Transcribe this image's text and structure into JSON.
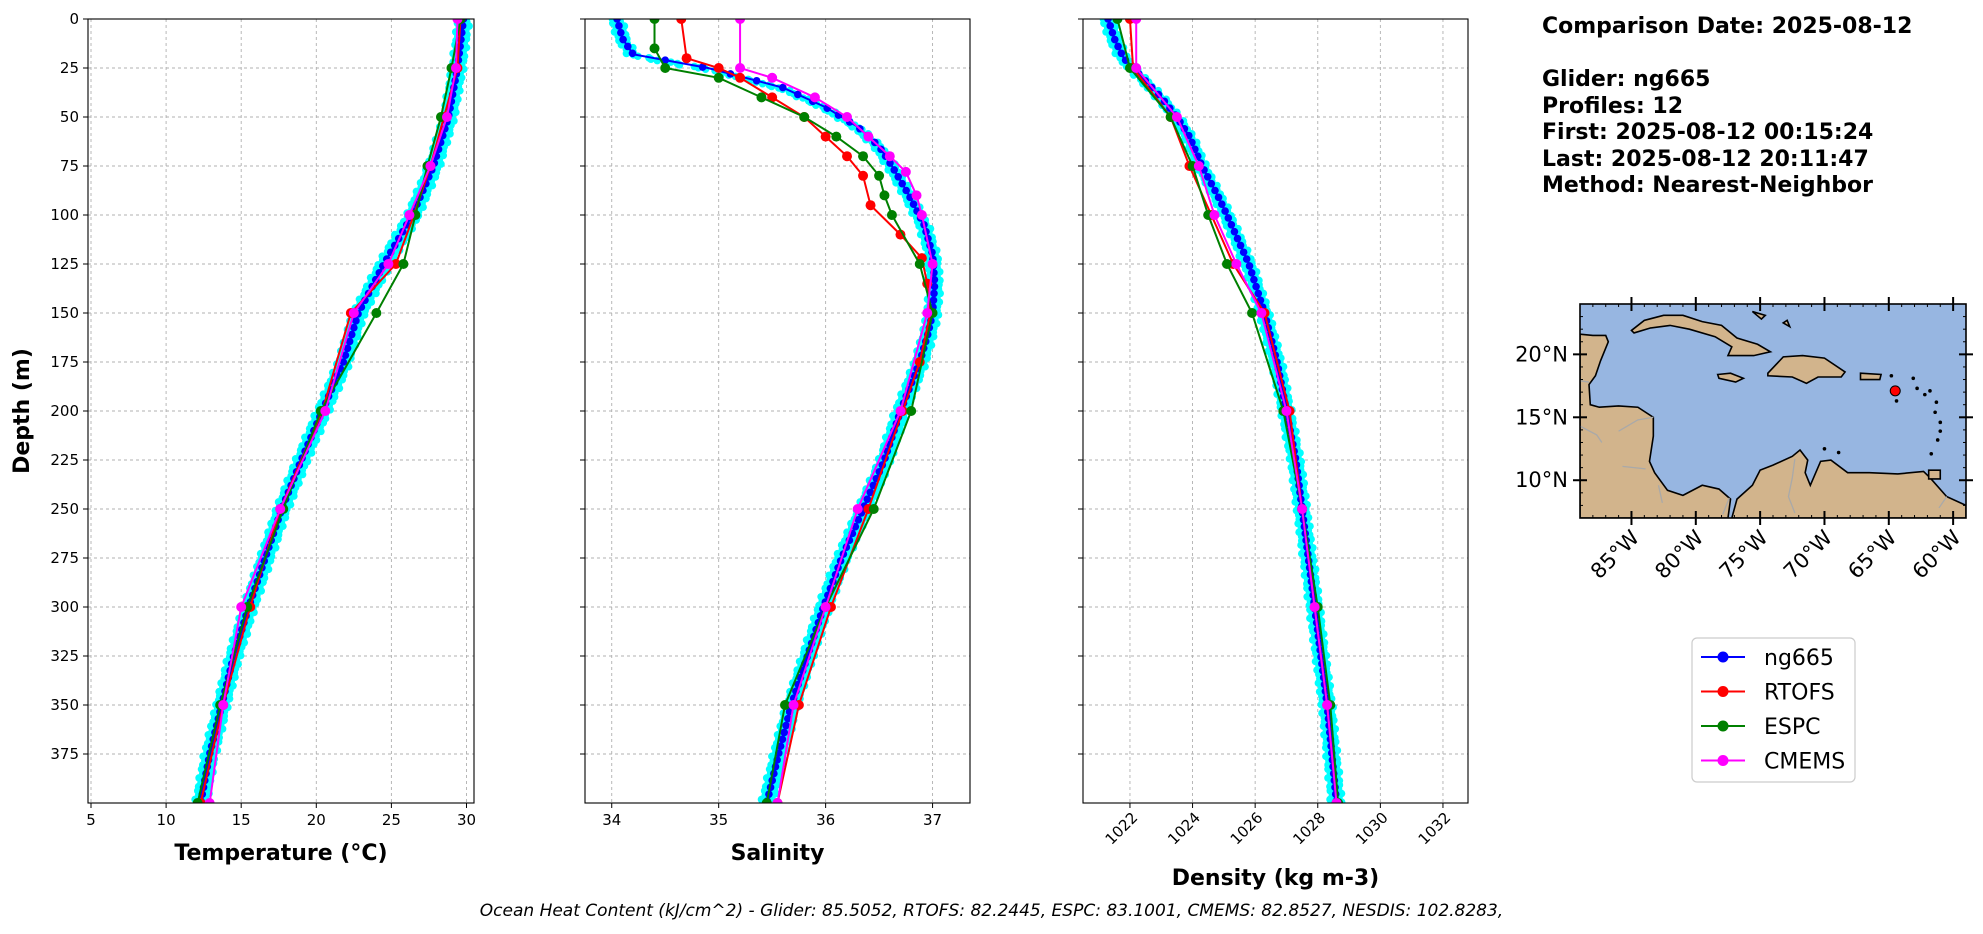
{
  "info": {
    "comparison_date": "Comparison Date: 2025-08-12",
    "glider": "Glider: ng665",
    "profiles": "Profiles: 12",
    "first": "First: 2025-08-12 00:15:24",
    "last": "Last: 2025-08-12 20:11:47",
    "method": "Method: Nearest-Neighbor"
  },
  "footer": "Ocean Heat Content (kJ/cm^2) - Glider: 85.5052,  RTOFS: 82.2445,  ESPC: 83.1001,  CMEMS: 82.8527,  NESDIS: 102.8283,",
  "colors": {
    "glider": "#0000ff",
    "glider_scatter": "#00ffff",
    "rtofs": "#ff0000",
    "espc": "#008000",
    "cmems": "#ff00ff",
    "ocean": "#97b6e1",
    "land": "#d2b48c"
  },
  "legend": {
    "placement": "below-map",
    "entries": [
      {
        "label": "ng665",
        "color": "#0000ff"
      },
      {
        "label": "RTOFS",
        "color": "#ff0000"
      },
      {
        "label": "ESPC",
        "color": "#008000"
      },
      {
        "label": "CMEMS",
        "color": "#ff00ff"
      }
    ]
  },
  "map": {
    "lon_range": [
      -89,
      -59
    ],
    "lat_range": [
      7,
      24
    ],
    "lat_ticks": [
      {
        "v": 20,
        "label": "20°N"
      },
      {
        "v": 15,
        "label": "15°N"
      },
      {
        "v": 10,
        "label": "10°N"
      }
    ],
    "lon_ticks": [
      {
        "v": -85,
        "label": "85°W"
      },
      {
        "v": -80,
        "label": "80°W"
      },
      {
        "v": -75,
        "label": "75°W"
      },
      {
        "v": -70,
        "label": "70°W"
      },
      {
        "v": -65,
        "label": "65°W"
      },
      {
        "v": -60,
        "label": "60°W"
      }
    ],
    "glider_position": {
      "lon": -64.5,
      "lat": 17.1
    }
  },
  "chart_data": [
    {
      "type": "line",
      "xlabel": "Temperature (°C)",
      "ylabel": "Depth (m)",
      "xlim": [
        4.8,
        30.5
      ],
      "ylim": [
        400,
        0
      ],
      "x_ticks": [
        5,
        10,
        15,
        20,
        25,
        30
      ],
      "y_ticks": [
        0,
        25,
        50,
        75,
        100,
        125,
        150,
        175,
        200,
        225,
        250,
        275,
        300,
        325,
        350,
        375
      ],
      "grid": true,
      "series": [
        {
          "name": "ng665",
          "depth": [
            0,
            25,
            50,
            75,
            100,
            125,
            150,
            175,
            200,
            225,
            250,
            275,
            300,
            325,
            350,
            375,
            400
          ],
          "values": [
            29.8,
            29.4,
            28.8,
            27.8,
            26.4,
            24.5,
            22.8,
            21.8,
            20.4,
            19.0,
            17.7,
            16.6,
            15.5,
            14.5,
            13.7,
            12.9,
            12.3
          ]
        },
        {
          "name": "RTOFS",
          "depth": [
            0,
            25,
            50,
            75,
            100,
            125,
            150,
            200,
            250,
            300,
            350,
            400
          ],
          "values": [
            29.6,
            29.4,
            28.5,
            27.6,
            26.5,
            25.3,
            22.3,
            20.4,
            17.6,
            15.6,
            13.8,
            12.3
          ]
        },
        {
          "name": "ESPC",
          "depth": [
            0,
            25,
            50,
            75,
            100,
            125,
            150,
            200,
            250,
            300,
            350,
            400
          ],
          "values": [
            29.6,
            29.0,
            28.3,
            27.4,
            26.6,
            25.8,
            24.0,
            20.3,
            17.8,
            15.4,
            13.6,
            12.1
          ]
        },
        {
          "name": "CMEMS",
          "depth": [
            0,
            25,
            50,
            75,
            100,
            125,
            150,
            200,
            250,
            300,
            350,
            400
          ],
          "values": [
            29.4,
            29.3,
            28.7,
            27.6,
            26.2,
            24.8,
            22.5,
            20.6,
            17.6,
            15.0,
            13.8,
            12.9
          ]
        }
      ]
    },
    {
      "type": "line",
      "xlabel": "Salinity",
      "xlim": [
        33.75,
        37.35
      ],
      "ylim": [
        400,
        0
      ],
      "x_ticks": [
        34,
        35,
        36,
        37
      ],
      "grid": true,
      "series": [
        {
          "name": "ng665",
          "depth": [
            0,
            10,
            18,
            25,
            35,
            45,
            55,
            65,
            75,
            90,
            105,
            120,
            135,
            150,
            160,
            175,
            200,
            225,
            250,
            275,
            300,
            325,
            350,
            375,
            400
          ],
          "values": [
            34.05,
            34.1,
            34.2,
            34.9,
            35.6,
            36.0,
            36.3,
            36.5,
            36.62,
            36.78,
            36.92,
            37.0,
            37.02,
            37.0,
            36.96,
            36.88,
            36.7,
            36.55,
            36.35,
            36.15,
            35.98,
            35.83,
            35.68,
            35.56,
            35.45
          ]
        },
        {
          "name": "RTOFS",
          "depth": [
            0,
            20,
            25,
            30,
            40,
            50,
            60,
            70,
            80,
            95,
            110,
            122,
            135,
            150,
            175,
            200,
            250,
            300,
            350,
            400
          ],
          "values": [
            34.65,
            34.7,
            35.0,
            35.2,
            35.5,
            35.8,
            36.0,
            36.2,
            36.35,
            36.42,
            36.7,
            36.9,
            36.95,
            36.98,
            36.88,
            36.72,
            36.4,
            36.05,
            35.75,
            35.55
          ]
        },
        {
          "name": "ESPC",
          "depth": [
            0,
            15,
            25,
            30,
            40,
            50,
            60,
            70,
            80,
            90,
            100,
            125,
            150,
            200,
            250,
            300,
            350,
            400
          ],
          "values": [
            34.4,
            34.4,
            34.5,
            35.0,
            35.4,
            35.8,
            36.1,
            36.35,
            36.5,
            36.55,
            36.62,
            36.88,
            37.0,
            36.8,
            36.45,
            36.0,
            35.62,
            35.45
          ]
        },
        {
          "name": "CMEMS",
          "depth": [
            0,
            25,
            30,
            40,
            50,
            60,
            70,
            78,
            90,
            100,
            125,
            150,
            200,
            250,
            300,
            350,
            400
          ],
          "values": [
            35.2,
            35.2,
            35.5,
            35.9,
            36.2,
            36.4,
            36.6,
            36.75,
            36.85,
            36.9,
            37.0,
            36.95,
            36.7,
            36.3,
            36.0,
            35.7,
            35.55
          ]
        }
      ]
    },
    {
      "type": "line",
      "xlabel": "Density (kg m-3)",
      "xlim": [
        1020.5,
        1032.8
      ],
      "ylim": [
        400,
        0
      ],
      "x_ticks": [
        1022,
        1024,
        1026,
        1028,
        1030,
        1032
      ],
      "grid": true,
      "series": [
        {
          "name": "ng665",
          "depth": [
            0,
            10,
            20,
            30,
            40,
            50,
            60,
            75,
            90,
            100,
            125,
            150,
            175,
            200,
            225,
            250,
            275,
            300,
            325,
            350,
            375,
            400
          ],
          "values": [
            1021.3,
            1021.5,
            1021.8,
            1022.4,
            1023.0,
            1023.5,
            1023.9,
            1024.3,
            1024.8,
            1025.1,
            1025.8,
            1026.3,
            1026.7,
            1027.0,
            1027.3,
            1027.5,
            1027.7,
            1027.9,
            1028.1,
            1028.3,
            1028.45,
            1028.6
          ]
        },
        {
          "name": "RTOFS",
          "depth": [
            0,
            25,
            50,
            75,
            100,
            125,
            150,
            200,
            250,
            300,
            350,
            400
          ],
          "values": [
            1022.0,
            1022.1,
            1023.3,
            1023.9,
            1024.6,
            1025.3,
            1026.3,
            1027.1,
            1027.5,
            1027.9,
            1028.3,
            1028.6
          ]
        },
        {
          "name": "ESPC",
          "depth": [
            0,
            25,
            50,
            75,
            100,
            125,
            150,
            200,
            250,
            300,
            350,
            400
          ],
          "values": [
            1021.6,
            1022.0,
            1023.3,
            1024.0,
            1024.5,
            1025.1,
            1025.9,
            1026.9,
            1027.5,
            1028.0,
            1028.4,
            1028.65
          ]
        },
        {
          "name": "CMEMS",
          "depth": [
            0,
            25,
            50,
            75,
            100,
            125,
            150,
            200,
            250,
            300,
            350,
            400
          ],
          "values": [
            1022.2,
            1022.2,
            1023.5,
            1024.2,
            1024.7,
            1025.4,
            1026.2,
            1027.0,
            1027.5,
            1027.9,
            1028.3,
            1028.6
          ]
        }
      ]
    }
  ]
}
